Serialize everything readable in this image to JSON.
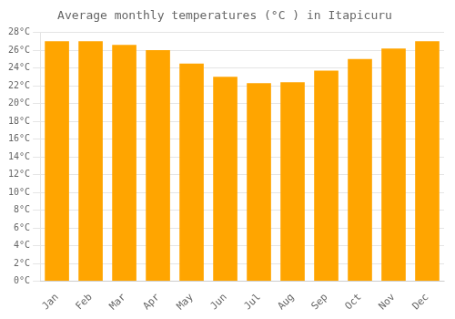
{
  "chart_data": {
    "type": "bar",
    "title": "Average monthly temperatures (°C ) in Itapicuru",
    "categories": [
      "Jan",
      "Feb",
      "Mar",
      "Apr",
      "May",
      "Jun",
      "Jul",
      "Aug",
      "Sep",
      "Oct",
      "Nov",
      "Dec"
    ],
    "values": [
      27.0,
      27.0,
      26.6,
      26.0,
      24.5,
      23.0,
      22.3,
      22.4,
      23.7,
      25.0,
      26.2,
      27.0
    ],
    "color": "#FFA500",
    "ylim": [
      0,
      28
    ],
    "yticks": [
      {
        "value": 0,
        "label": "0°C"
      },
      {
        "value": 2,
        "label": "2°C"
      },
      {
        "value": 4,
        "label": "4°C"
      },
      {
        "value": 6,
        "label": "6°C"
      },
      {
        "value": 8,
        "label": "8°C"
      },
      {
        "value": 10,
        "label": "10°C"
      },
      {
        "value": 12,
        "label": "12°C"
      },
      {
        "value": 14,
        "label": "14°C"
      },
      {
        "value": 16,
        "label": "16°C"
      },
      {
        "value": 18,
        "label": "18°C"
      },
      {
        "value": 20,
        "label": "20°C"
      },
      {
        "value": 22,
        "label": "22°C"
      },
      {
        "value": 24,
        "label": "24°C"
      },
      {
        "value": 26,
        "label": "26°C"
      },
      {
        "value": 28,
        "label": "28°C"
      }
    ],
    "grid": true
  }
}
